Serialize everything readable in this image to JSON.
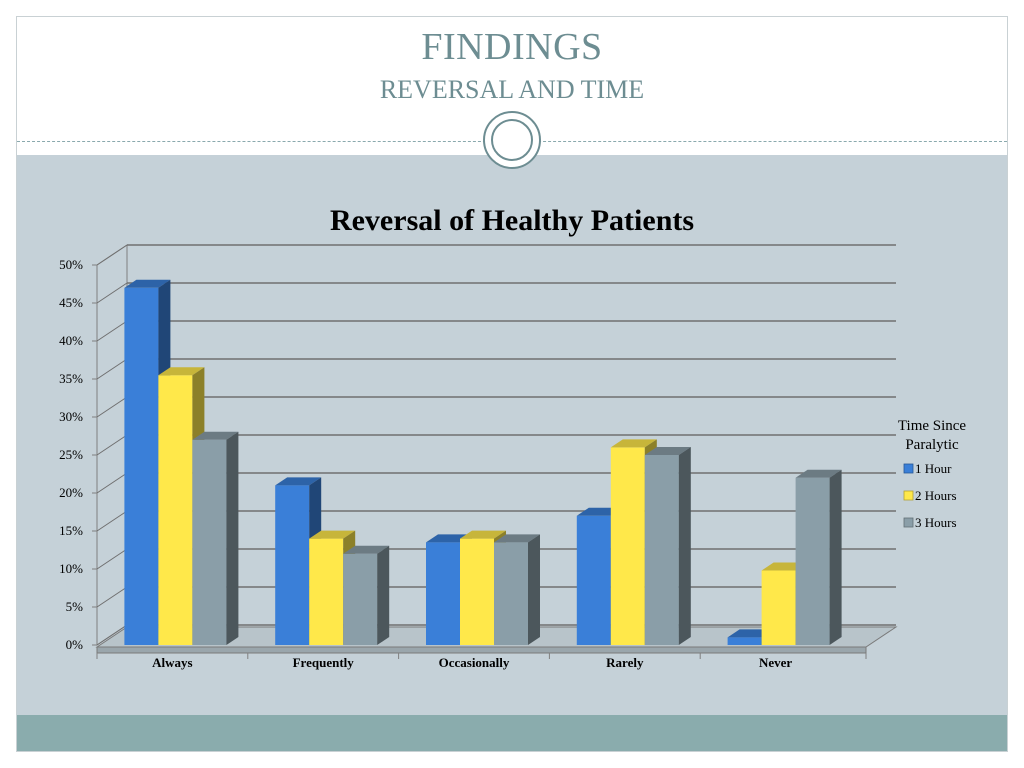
{
  "slide": {
    "title": "FINDINGS",
    "subtitle": "REVERSAL AND TIME"
  },
  "colors": {
    "title": "#6d8d92",
    "background": "#c5d1d8",
    "footer": "#8aacad",
    "series": [
      "#3a7fd8",
      "#ffe84a",
      "#8a9ea8"
    ]
  },
  "chart_data": {
    "type": "bar",
    "title": "Reversal of Healthy Patients",
    "categories": [
      "Always",
      "Frequently",
      "Occasionally",
      "Rarely",
      "Never"
    ],
    "series": [
      {
        "name": "1 Hour",
        "values": [
          47,
          21,
          13.5,
          17,
          1
        ]
      },
      {
        "name": "2 Hours",
        "values": [
          35.5,
          14,
          14,
          26,
          9.8
        ]
      },
      {
        "name": "3 Hours",
        "values": [
          27,
          12,
          13.5,
          25,
          22
        ]
      }
    ],
    "ylim": [
      0,
      50
    ],
    "yticks": [
      "0%",
      "5%",
      "10%",
      "15%",
      "20%",
      "25%",
      "30%",
      "35%",
      "40%",
      "45%",
      "50%"
    ],
    "xlabel": "",
    "ylabel": "",
    "grid": true,
    "legend_title": "Time Since Paralytic",
    "legend_position": "right"
  }
}
